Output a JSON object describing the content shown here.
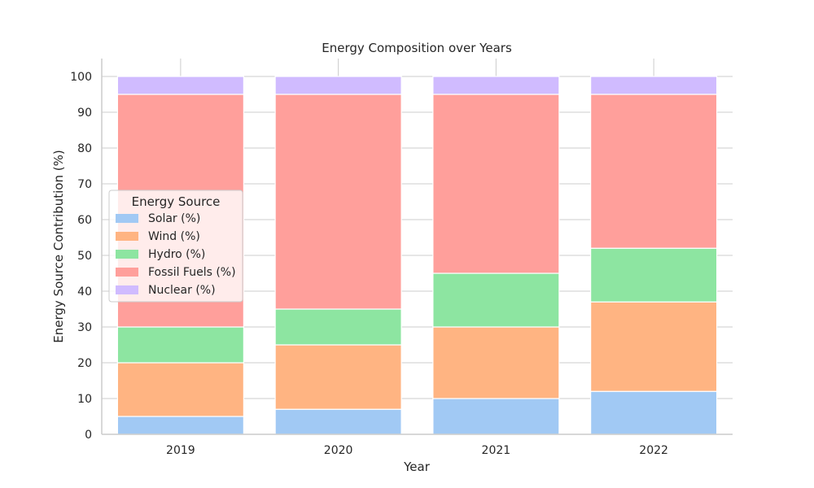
{
  "chart_data": {
    "type": "bar",
    "stacked": true,
    "title": "Energy Composition over Years",
    "xlabel": "Year",
    "ylabel": "Energy Source Contribution (%)",
    "categories": [
      "2019",
      "2020",
      "2021",
      "2022"
    ],
    "ylim": [
      0,
      105
    ],
    "yticks": [
      0,
      10,
      20,
      30,
      40,
      50,
      60,
      70,
      80,
      90,
      100
    ],
    "grid": true,
    "legend": {
      "title": "Energy Source",
      "position": "center-left"
    },
    "series": [
      {
        "name": "Solar (%)",
        "color": "#a1c9f4",
        "values": [
          5,
          7,
          10,
          12
        ]
      },
      {
        "name": "Wind (%)",
        "color": "#ffb482",
        "values": [
          15,
          18,
          20,
          25
        ]
      },
      {
        "name": "Hydro (%)",
        "color": "#8de5a1",
        "values": [
          10,
          10,
          15,
          15
        ]
      },
      {
        "name": "Fossil Fuels (%)",
        "color": "#ff9f9b",
        "values": [
          65,
          60,
          50,
          43
        ]
      },
      {
        "name": "Nuclear (%)",
        "color": "#d0bbff",
        "values": [
          5,
          5,
          5,
          5
        ]
      }
    ]
  }
}
